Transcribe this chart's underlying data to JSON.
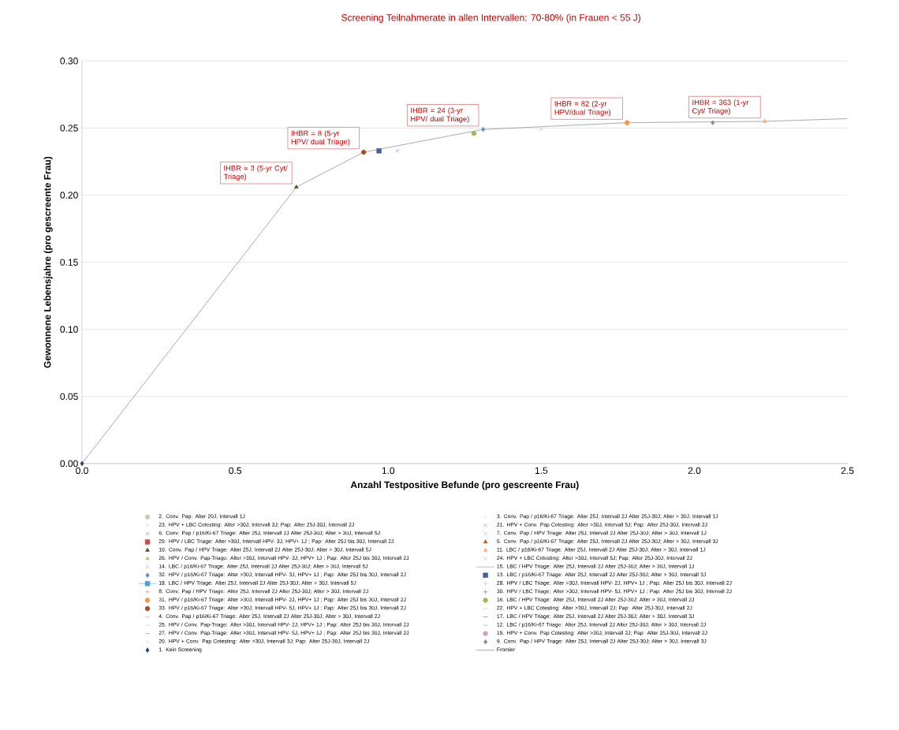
{
  "chart_data": {
    "type": "scatter",
    "title": "Screening Teilnahmerate in allen Intervallen: 70-80% (in Frauen < 55 J)",
    "xlabel": "Anzahl Testpositive Befunde (pro gescreente Frau)",
    "ylabel": "Gewonnene Lebensjahre  (pro  gescreente Frau)",
    "xlim": [
      0,
      2.5
    ],
    "ylim": [
      0,
      0.3
    ],
    "xticks": [
      {
        "value": 0,
        "label": "0.0"
      },
      {
        "value": 0.5,
        "label": "0.5"
      },
      {
        "value": 1,
        "label": "1.0"
      },
      {
        "value": 1.5,
        "label": "1.5"
      },
      {
        "value": 2,
        "label": "2.0"
      },
      {
        "value": 2.5,
        "label": "2.5"
      }
    ],
    "yticks": [
      {
        "value": 0,
        "label": "0.00"
      },
      {
        "value": 0.05,
        "label": "0.05"
      },
      {
        "value": 0.1,
        "label": "0.10"
      },
      {
        "value": 0.15,
        "label": "0.15"
      },
      {
        "value": 0.2,
        "label": "0.20"
      },
      {
        "value": 0.25,
        "label": "0.25"
      },
      {
        "value": 0.3,
        "label": "0.30"
      }
    ],
    "grid": "y",
    "legend": "bottom",
    "annotations": [
      {
        "text": "IHBR = 3 (5-yr Cyt/ Triage)",
        "x": 0.7,
        "y": 0.206
      },
      {
        "text": "IHBR = 8 (5-yr HPV/ dual Triage)",
        "x": 0.92,
        "y": 0.232
      },
      {
        "text": "IHBR = 24 (3-yr HPV/ dual Triage)",
        "x": 1.31,
        "y": 0.249
      },
      {
        "text": "IHBR = 82 (2-yr HPV/dual Triage)",
        "x": 1.78,
        "y": 0.254
      },
      {
        "text": "IHBR = 363 (1-yr Cyt/ Triage)",
        "x": 2.23,
        "y": 0.255
      }
    ],
    "series": [
      {
        "name": "2. Conv. Pap: Alter 20J, Intervall 1J",
        "color": "#c8d0b0",
        "marker": "circle"
      },
      {
        "name": "3. Conv. Pap / p16/Ki-67 Triage: Alter 25J, Intervall 2J Alter 25J-30J; Alter > 30J, Intervall 1J",
        "color": "#d8d8d8",
        "marker": "cross"
      },
      {
        "name": "23. HPV + LBC Cotesting: Alter >30J, Intervall 3J; Pap: Alter 25J-30J, Intervall 2J",
        "color": "#c0c0c0",
        "marker": "cross"
      },
      {
        "name": "21. HPV + Conv. Pap Cotesting: Alter >30J, Intervall 5J; Pap: Alter 25J-30J, Intervall 2J",
        "color": "#d06080",
        "marker": "cross"
      },
      {
        "name": "6. Conv. Pap / p16/Ki-67 Triage: Alter 25J, Intervall 2J Alter 25J-30J; Alter > 30J, Intervall 5J",
        "color": "#5b7bb0",
        "marker": "cross",
        "x": [
          1.03
        ],
        "values": [
          0.233
        ]
      },
      {
        "name": "7. Conv. Pap / HPV Triage: Alter 25J, Intervall 2J Alter 25J-30J; Alter > 30J, Intervall 1J",
        "color": "#7fb3e0",
        "marker": "cross",
        "x": [
          1.5
        ],
        "values": [
          0.249
        ]
      },
      {
        "name": "29. HPV / LBC Triage: Alter >30J, Intervall HPV- 3J, HPV+ 1J ; Pap: Alter 25J bis 30J, Intervall 2J",
        "color": "#c0504d",
        "marker": "square"
      },
      {
        "name": "5. Conv. Pap / p16/Ki-67 Triage: Alter 25J, Intervall 2J Alter 25J-30J; Alter > 30J, Intervall 3J",
        "color": "#c0602a",
        "marker": "triangle"
      },
      {
        "name": "10. Conv. Pap / HPV Triage: Alter 25J, Intervall 2J Alter 25J-30J; Alter > 30J, Intervall 5J",
        "color": "#3f5a28",
        "marker": "triangle",
        "x": [
          0.7
        ],
        "values": [
          0.206
        ]
      },
      {
        "name": "11. LBC / p16/Ki-67 Triage: Alter 25J, Intervall 2J Alter 25J-30J; Alter > 30J, Intervall 1J",
        "color": "#f5b080",
        "marker": "triangle",
        "x": [
          2.23
        ],
        "values": [
          0.255
        ]
      },
      {
        "name": "26. HPV / Conv. Pap-Triage: Alter >30J, Intervall HPV- 3J, HPV+ 1J ; Pap: Alter 25J bis 30J, Intervall 2J",
        "color": "#b8c870",
        "marker": "triangle"
      },
      {
        "name": "24. HPV + LBC Cotesting: Alter >30J, Intervall 5J; Pap: Alter 25J-30J, Intervall 2J",
        "color": "#b0b0b0",
        "marker": "cross"
      },
      {
        "name": "14. LBC / p16/Ki-67 Triage: Alter 25J, Intervall 2J Alter 25J-30J; Alter > 30J, Intervall 5J",
        "color": "#a0a0a0",
        "marker": "cross"
      },
      {
        "name": "15. LBC / HPV Triage: Alter 25J, Intervall 2J Alter 25J-30J; Alter > 30J, Intervall 1J",
        "color": "#808080",
        "type": "line",
        "marker": "none"
      },
      {
        "name": "32. HPV / p16/Ki-67 Triage: Alter >30J, Intervall HPV- 3J, HPV+ 1J ; Pap: Alter 25J bis 30J, Intervall 2J",
        "color": "#5b8bd0",
        "marker": "diamond",
        "x": [
          1.31
        ],
        "values": [
          0.249
        ]
      },
      {
        "name": "13. LBC / p16/Ki-67 Triage: Alter 25J, Intervall 2J Alter 25J-30J; Alter > 30J, Intervall 3J",
        "color": "#4a5a9c",
        "marker": "square",
        "x": [
          0.97
        ],
        "values": [
          0.233
        ]
      },
      {
        "name": "18. LBC / HPV Triage: Alter 25J, Intervall 2J Alter 25J-30J; Alter > 30J, Intervall 5J",
        "color": "#4aa0d0",
        "type": "line",
        "marker": "square"
      },
      {
        "name": "28. HPV / LBC Triage: Alter >30J, Intervall HPV- 2J, HPV+ 1J ; Pap: Alter 25J bis 30J, Intervall 2J",
        "color": "#e8a0b0",
        "marker": "plus"
      },
      {
        "name": "8. Conv. Pap / HPV Triage: Alter 25J, Intervall 2J Alter 25J-30J; Alter > 30J, Intervall 2J",
        "color": "#d08080",
        "marker": "plus"
      },
      {
        "name": "30. HPV / LBC Triage: Alter >30J, Intervall HPV- 5J, HPV+ 1J ; Pap: Alter 25J bis 30J, Intervall 2J",
        "color": "#4060a0",
        "marker": "plus"
      },
      {
        "name": "31. HPV / p16/Ki-67 Triage: Alter >30J, Intervall HPV- 2J, HPV+ 1J ; Pap: Alter 25J bis 30J, Intervall 2J",
        "color": "#f79646",
        "marker": "circle",
        "x": [
          1.78
        ],
        "values": [
          0.254
        ]
      },
      {
        "name": "16. LBC / HPV Triage: Alter 25J, Intervall 2J Alter 25J-30J; Alter > 30J, Intervall 2J",
        "color": "#9bbb59",
        "marker": "circle",
        "x": [
          1.28
        ],
        "values": [
          0.246
        ]
      },
      {
        "name": "33. HPV / p16/Ki-67 Triage: Alter >30J, Intervall HPV- 5J, HPV+ 1J ; Pap: Alter 25J bis 30J, Intervall 2J",
        "color": "#a0522d",
        "marker": "circle",
        "x": [
          0.92
        ],
        "values": [
          0.232
        ]
      },
      {
        "name": "22. HPV + LBC Cotesting: Alter >30J, Intervall 2J; Pap: Alter 25J-30J, Intervall 2J",
        "color": "#9dc3e6",
        "marker": "dash"
      },
      {
        "name": "4. Conv. Pap / p16/Ki-67 Triage: Alter 25J, Intervall 2J Alter 25J-30J; Alter > 30J, Intervall 2J",
        "color": "#e0a060",
        "marker": "dash"
      },
      {
        "name": "17. LBC / HPV Triage: Alter 25J, Intervall 2J Alter 25J-30J; Alter > 30J, Intervall 3J",
        "color": "#606060",
        "marker": "dash"
      },
      {
        "name": "25. HPV / Conv. Pap-Triage: Alter >30J, Intervall HPV- 2J, HPV+ 1J ; Pap: Alter 25J bis 30J, Intervall 2J",
        "color": "#e8a0a0",
        "marker": "dash"
      },
      {
        "name": "12. LBC / p16/Ki-67 Triage: Alter 25J, Intervall 2J Alter 25J-30J; Alter > 30J, Intervall 2J",
        "color": "#4bacc6",
        "marker": "dash"
      },
      {
        "name": "27. HPV / Conv. Pap-Triage: Alter >30J, Intervall HPV- 5J, HPV+ 1J ; Pap: Alter 25J bis 30J, Intervall 2J",
        "color": "#c0504d",
        "marker": "dash"
      },
      {
        "name": "19. HPV + Conv. Pap Cotesting: Alter >30J, Intervall 2J; Pap: Alter 25J-30J, Intervall 2J",
        "color": "#d0a0c0",
        "marker": "circle"
      },
      {
        "name": "20. HPV + Conv. Pap Cotesting: Alter >30J, Intervall 3J; Pap: Alter 25J-30J, Intervall 2J",
        "color": "#d0d0d0",
        "marker": "cross"
      },
      {
        "name": "9. Conv. Pap / HPV Triage: Alter 25J, Intervall 2J Alter 25J-30J; Alter > 30J, Intervall 3J",
        "color": "#8c8c8c",
        "marker": "diamond",
        "x": [
          2.06
        ],
        "values": [
          0.254
        ]
      },
      {
        "name": "1. Kein Screening",
        "color": "#1f497d",
        "marker": "diamond",
        "x": [
          0
        ],
        "values": [
          0
        ]
      },
      {
        "name": "Frontier",
        "color": "#606060",
        "type": "line",
        "marker": "none",
        "x": [
          0,
          0.7,
          0.92,
          1.31,
          1.78,
          2.23,
          2.5
        ],
        "values": [
          0,
          0.206,
          0.232,
          0.249,
          0.254,
          0.255,
          0.257
        ]
      }
    ]
  }
}
